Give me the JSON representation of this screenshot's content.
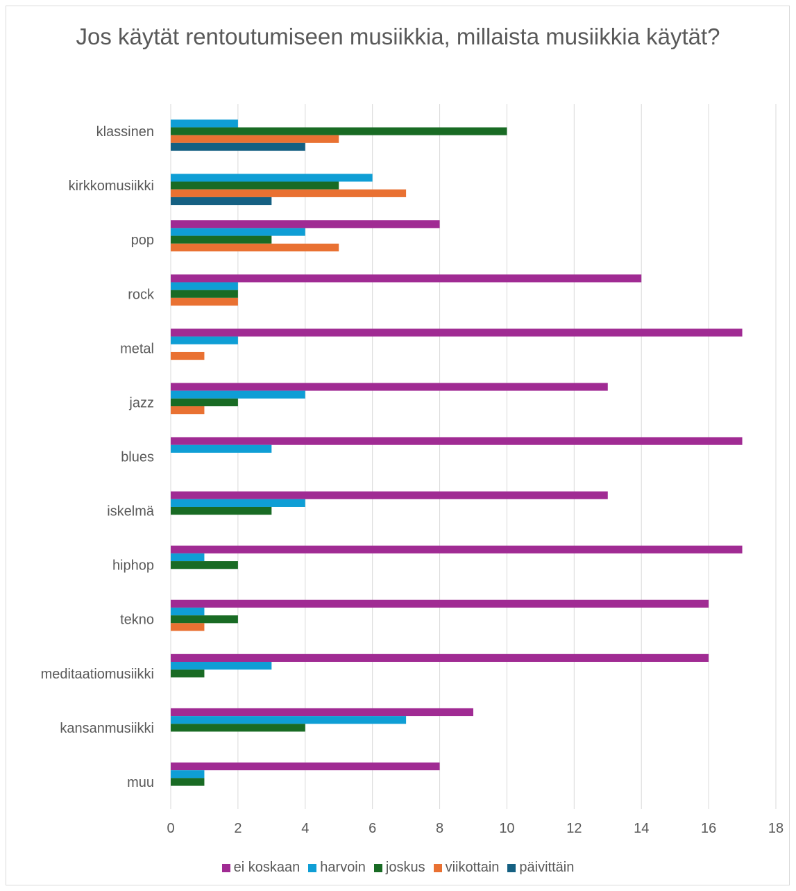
{
  "chart_data": {
    "type": "bar",
    "orientation": "horizontal",
    "title": "Jos käytät rentoutumiseen musiikkia, millaista musiikkia käytät?",
    "categories": [
      "klassinen",
      "kirkkomusiikki",
      "pop",
      "rock",
      "metal",
      "jazz",
      "blues",
      "iskelmä",
      "hiphop",
      "tekno",
      "meditaatiomusiikki",
      "kansanmusiikki",
      "muu"
    ],
    "series": [
      {
        "name": "ei koskaan",
        "color": "#a02b93",
        "values": [
          0,
          0,
          8,
          14,
          17,
          13,
          17,
          13,
          17,
          16,
          16,
          9,
          8
        ]
      },
      {
        "name": "harvoin",
        "color": "#0f9ed5",
        "values": [
          2,
          6,
          4,
          2,
          2,
          4,
          3,
          4,
          1,
          1,
          3,
          7,
          1
        ]
      },
      {
        "name": "joskus",
        "color": "#196b24",
        "values": [
          10,
          5,
          3,
          2,
          0,
          2,
          0,
          3,
          2,
          2,
          1,
          4,
          1
        ]
      },
      {
        "name": "viikottain",
        "color": "#e97132",
        "values": [
          5,
          7,
          5,
          2,
          1,
          1,
          0,
          0,
          0,
          1,
          0,
          0,
          0
        ]
      },
      {
        "name": "päivittäin",
        "color": "#156082",
        "values": [
          4,
          3,
          0,
          0,
          0,
          0,
          0,
          0,
          0,
          0,
          0,
          0,
          0
        ]
      }
    ],
    "xlim": [
      0,
      18
    ],
    "x_ticks": [
      "0",
      "2",
      "4",
      "6",
      "8",
      "10",
      "12",
      "14",
      "16",
      "18"
    ],
    "grid": true,
    "legend_position": "bottom"
  }
}
